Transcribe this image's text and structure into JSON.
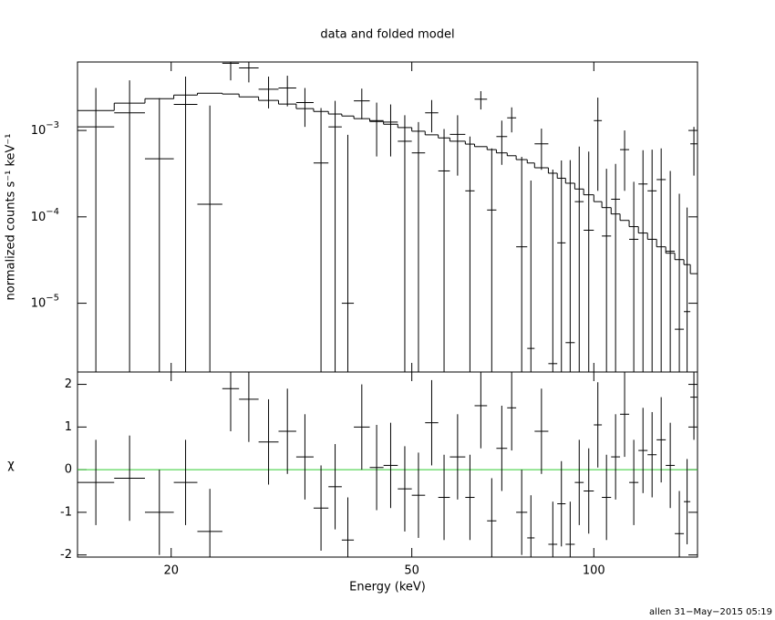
{
  "chart_data": {
    "type": "errorbar",
    "title": "data and folded model",
    "xlabel": "Energy (keV)",
    "xscale": "log",
    "xlim": [
      14.0,
      148.4
    ],
    "xticks": [
      20,
      50,
      100
    ],
    "bins": [
      14.0,
      16.1,
      18.1,
      20.2,
      22.1,
      24.3,
      25.9,
      27.9,
      30.1,
      32.2,
      34.4,
      36.4,
      38.3,
      40.1,
      42.6,
      44.9,
      47.4,
      50.0,
      52.6,
      55.3,
      57.8,
      61.3,
      63.5,
      66.6,
      69.0,
      71.9,
      74.4,
      77.6,
      79.8,
      84.1,
      87.0,
      89.8,
      93.0,
      96.2,
      100.0,
      103.1,
      106.8,
      110.5,
      114.4,
      118.5,
      122.7,
      127.0,
      131.5,
      136.1,
      140.9,
      144.4,
      148.4
    ],
    "panels": [
      {
        "ylabel": "normalized counts s⁻¹ keV⁻¹",
        "yscale": "log",
        "ylim": [
          1.6e-06,
          0.0062
        ],
        "yticks": [
          {
            "value": 0.001,
            "label": "10",
            "exponent": "−3"
          },
          {
            "value": 0.0001,
            "label": "10",
            "exponent": "−4"
          },
          {
            "value": 1e-05,
            "label": "10",
            "exponent": "−5"
          }
        ],
        "color": "#000000",
        "model_color": "#000000",
        "values": [
          0.0011,
          0.0016,
          0.00047,
          0.002,
          0.00014,
          0.006,
          0.0053,
          0.003,
          0.0031,
          0.0021,
          0.00042,
          0.0011,
          1e-05,
          0.0022,
          0.0013,
          0.00125,
          0.00075,
          0.00055,
          0.0016,
          0.00034,
          0.0009,
          0.0002,
          0.0023,
          0.00012,
          0.00085,
          0.0014,
          4.5e-05,
          3e-06,
          0.0007,
          2e-06,
          5e-05,
          3.5e-06,
          0.00015,
          7e-05,
          0.0013,
          6e-05,
          0.00016,
          0.0006,
          5.5e-05,
          0.00024,
          0.0002,
          0.00027,
          4e-05,
          5e-06,
          8e-06,
          0.0007
        ],
        "errors": [
          0.002,
          0.0022,
          0.0019,
          0.0022,
          0.0018,
          0.0022,
          0.0017,
          0.0012,
          0.0012,
          0.001,
          0.0014,
          0.0011,
          0.00088,
          0.00085,
          0.0008,
          0.00075,
          0.00075,
          0.0007,
          0.00065,
          0.0007,
          0.0006,
          0.00065,
          0.00055,
          0.0005,
          0.00045,
          0.00045,
          0.00045,
          0.00026,
          0.00035,
          0.00035,
          0.0004,
          0.00045,
          0.0005,
          0.0005,
          0.0011,
          0.0003,
          0.00025,
          0.0004,
          0.0002,
          0.00035,
          0.0004,
          0.00035,
          0.0003,
          0.00018,
          0.00012,
          0.0004
        ],
        "model": [
          0.0017,
          0.00207,
          0.00233,
          0.00257,
          0.0027,
          0.00264,
          0.00245,
          0.00223,
          0.00202,
          0.00179,
          0.00166,
          0.00155,
          0.00147,
          0.00137,
          0.00127,
          0.00118,
          0.00108,
          0.00098,
          0.00089,
          0.00082,
          0.00075,
          0.000695,
          0.00065,
          0.0006,
          0.00055,
          0.00051,
          0.00046,
          0.00042,
          0.00037,
          0.00032,
          0.00028,
          0.000245,
          0.00021,
          0.00018,
          0.00015,
          0.000128,
          0.000108,
          9.1e-05,
          7.7e-05,
          6.5e-05,
          5.5e-05,
          4.5e-05,
          3.8e-05,
          3.2e-05,
          2.8e-05,
          2.2e-05
        ]
      },
      {
        "ylabel": "χ",
        "yscale": "linear",
        "ylim": [
          -2.05,
          2.29
        ],
        "yticks": [
          -2,
          -1,
          0,
          1,
          2
        ],
        "color": "#000000",
        "reference": 0,
        "reference_color": "#33cc33",
        "values": [
          -0.3,
          -0.2,
          -1.0,
          -0.3,
          -1.45,
          1.9,
          1.65,
          0.65,
          0.9,
          0.3,
          -0.9,
          -0.4,
          -1.65,
          1.0,
          0.05,
          0.1,
          -0.45,
          -0.6,
          1.1,
          -0.65,
          0.3,
          -0.65,
          1.5,
          -1.2,
          0.5,
          1.45,
          -1.0,
          -1.6,
          0.9,
          -1.75,
          -0.8,
          -1.75,
          -0.3,
          -0.5,
          1.05,
          -0.65,
          0.3,
          1.3,
          -0.3,
          0.45,
          0.35,
          0.7,
          0.1,
          -1.5,
          -0.75,
          1.7
        ],
        "errors": [
          1,
          1,
          1,
          1,
          1,
          1,
          1,
          1,
          1,
          1,
          1,
          1,
          1,
          1,
          1,
          1,
          1,
          1,
          1,
          1,
          1,
          1,
          1,
          1,
          1,
          1,
          1,
          1,
          1,
          1,
          1,
          1,
          1,
          1,
          1,
          1,
          1,
          1,
          1,
          1,
          1,
          1,
          1,
          1,
          1,
          1
        ]
      }
    ]
  },
  "footer": "allen 31−May−2015 05:19"
}
